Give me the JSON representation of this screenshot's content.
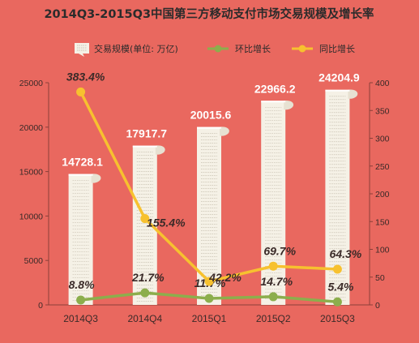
{
  "title": "2014Q3-2015Q3中国第三方移动支付市场交易规模及增长率",
  "legend": {
    "volume": "交易规模(单位: 万亿)",
    "qoq": "环比增长",
    "yoy": "同比增长"
  },
  "colors": {
    "background": "#e9685f",
    "bar": "#f5f1e6",
    "qoq_line": "#8cae4c",
    "yoy_line": "#f7c12f"
  },
  "chart_data": {
    "type": "bar",
    "title": "2014Q3-2015Q3中国第三方移动支付市场交易规模及增长率",
    "categories": [
      "2014Q3",
      "2014Q4",
      "2015Q1",
      "2015Q2",
      "2015Q3"
    ],
    "series": [
      {
        "name": "交易规模(单位: 万亿)",
        "type": "bar",
        "axis": "left",
        "values": [
          14728.1,
          17917.7,
          20015.6,
          22966.2,
          24204.9
        ],
        "labels": [
          "14728.1",
          "17917.7",
          "20015.6",
          "22966.2",
          "24204.9"
        ]
      },
      {
        "name": "环比增长",
        "type": "line",
        "axis": "right",
        "values": [
          8.8,
          21.7,
          11.7,
          14.7,
          5.4
        ],
        "labels": [
          "8.8%",
          "21.7%",
          "11.7%",
          "14.7%",
          "5.4%"
        ]
      },
      {
        "name": "同比增长",
        "type": "line",
        "axis": "right",
        "values": [
          383.4,
          155.4,
          42.2,
          69.7,
          64.3
        ],
        "labels": [
          "383.4%",
          "155.4%",
          "42.2%",
          "69.7%",
          "64.3%"
        ]
      }
    ],
    "y_left": {
      "range": [
        0,
        25000
      ],
      "ticks": [
        "0",
        "5000",
        "10000",
        "15000",
        "20000",
        "25000"
      ]
    },
    "y_right": {
      "range": [
        0,
        400
      ],
      "ticks": [
        "0",
        "50",
        "100",
        "150",
        "200",
        "250",
        "300",
        "350",
        "400"
      ]
    },
    "grid": false,
    "legend_position": "top"
  }
}
